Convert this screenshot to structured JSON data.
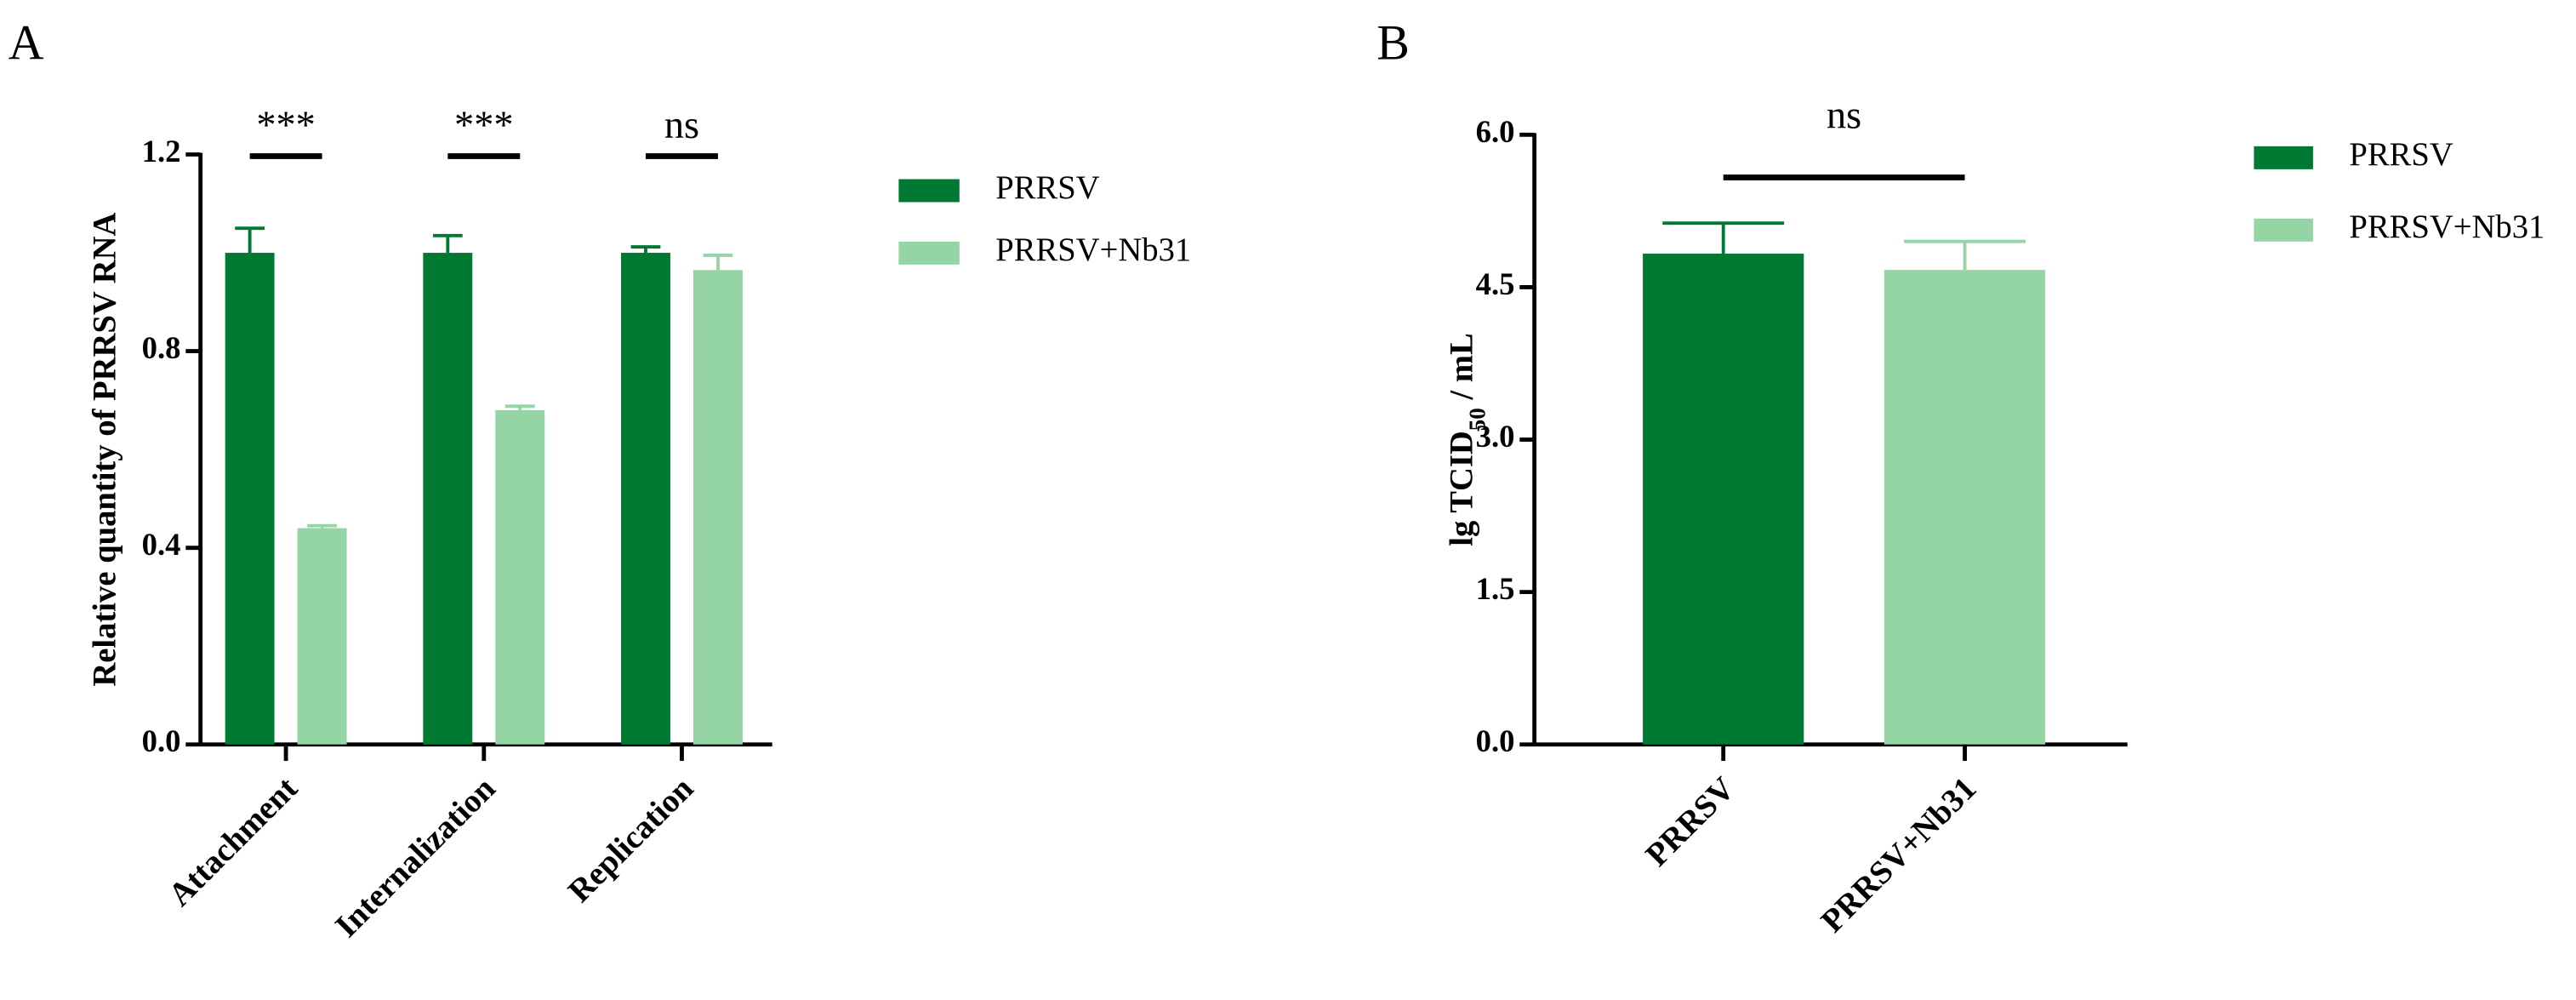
{
  "chart_data": [
    {
      "type": "bar",
      "panel": "A",
      "y_label": "Relative quantity of PRRSV RNA",
      "categories": [
        "Attachment",
        "Internalization",
        "Replication"
      ],
      "series": [
        {
          "name": "PRRSV",
          "color": "#007a33",
          "values": [
            1.0,
            1.0,
            1.0
          ],
          "errors": [
            0.05,
            0.035,
            0.012
          ]
        },
        {
          "name": "PRRSV+Nb31",
          "color": "#95d5a5",
          "values": [
            0.44,
            0.68,
            0.965
          ],
          "errors": [
            0.005,
            0.008,
            0.03
          ]
        }
      ],
      "annotations": [
        "***",
        "***",
        "ns"
      ],
      "ylim": [
        0,
        1.2
      ],
      "yticks": [
        {
          "value": 0,
          "label": "0.0"
        },
        {
          "value": 0.4,
          "label": "0.4"
        },
        {
          "value": 0.8,
          "label": "0.8"
        },
        {
          "value": 1.2,
          "label": "1.2"
        }
      ]
    },
    {
      "type": "bar",
      "panel": "B",
      "y_label_parts": [
        "lg TCID",
        "50",
        " / mL"
      ],
      "categories": [
        "PRRSV",
        "PRRSV+Nb31"
      ],
      "colors": [
        "#007a33",
        "#95d5a5"
      ],
      "values": [
        4.83,
        4.67
      ],
      "errors": [
        0.3,
        0.28
      ],
      "annotation": "ns",
      "ylim": [
        0,
        6
      ],
      "yticks": [
        {
          "value": 0,
          "label": "0.0"
        },
        {
          "value": 1.5,
          "label": "1.5"
        },
        {
          "value": 3,
          "label": "3.0"
        },
        {
          "value": 4.5,
          "label": "4.5"
        },
        {
          "value": 6,
          "label": "6.0"
        }
      ]
    }
  ]
}
